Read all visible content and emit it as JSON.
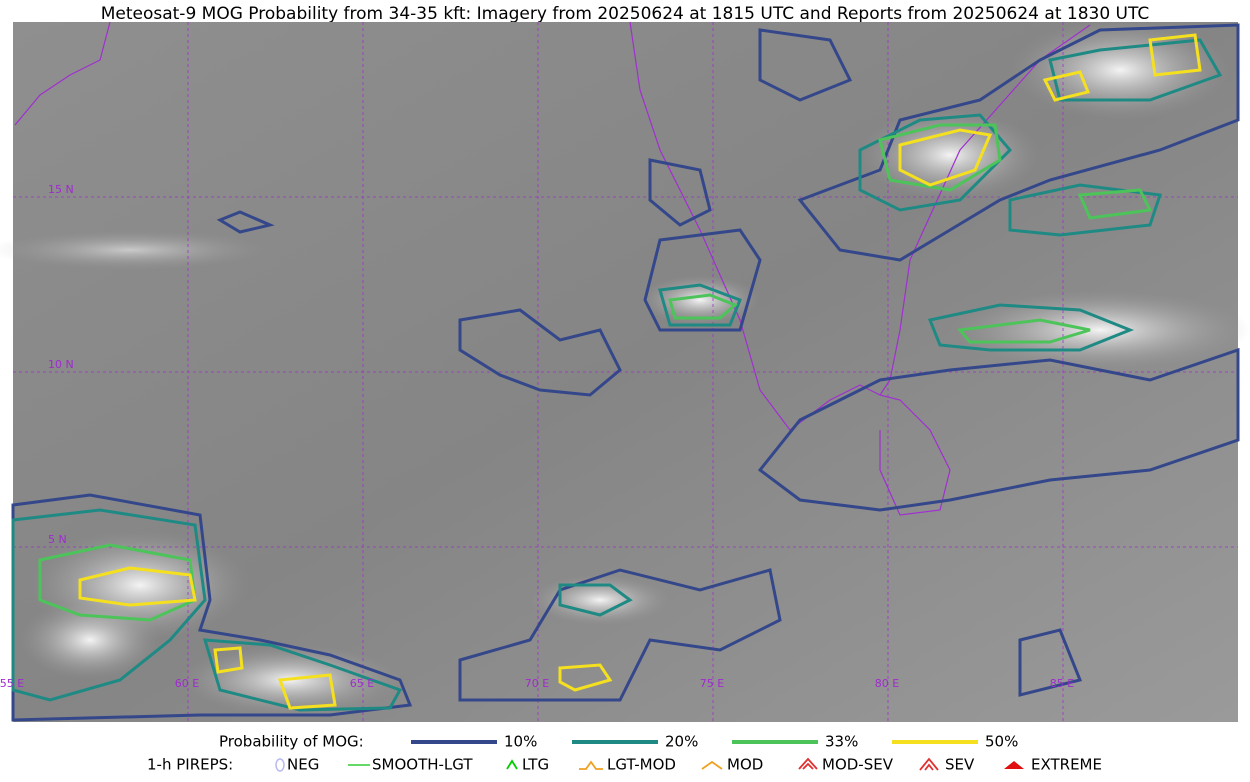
{
  "title": "Meteosat-9 MOG Probability from 34-35 kft: Imagery from 20250624 at 1815 UTC and Reports from 20250624 at 1830 UTC",
  "map": {
    "lat_labels": [
      "15 N",
      "10 N",
      "5 N"
    ],
    "lon_labels": [
      "55 E",
      "60 E",
      "65 E",
      "70 E",
      "75 E",
      "80 E",
      "85 E"
    ]
  },
  "legend": {
    "probability": {
      "title": "Probability of MOG:",
      "items": [
        {
          "label": "10%",
          "color": "#34478a"
        },
        {
          "label": "20%",
          "color": "#1f8a84"
        },
        {
          "label": "33%",
          "color": "#4cc45a"
        },
        {
          "label": "50%",
          "color": "#f5e020"
        }
      ]
    },
    "pireps": {
      "title": "1-h PIREPS:",
      "items": [
        {
          "label": "NEG",
          "color": "#b8b8f0"
        },
        {
          "label": "SMOOTH-LGT",
          "color": "#33cc33"
        },
        {
          "label": "LTG",
          "color": "#00cc00"
        },
        {
          "label": "LGT-MOD",
          "color": "#f0a020"
        },
        {
          "label": "MOD",
          "color": "#f0a020"
        },
        {
          "label": "MOD-SEV",
          "color": "#e03030"
        },
        {
          "label": "SEV",
          "color": "#e03030"
        },
        {
          "label": "EXTREME",
          "color": "#e01010"
        }
      ]
    }
  }
}
